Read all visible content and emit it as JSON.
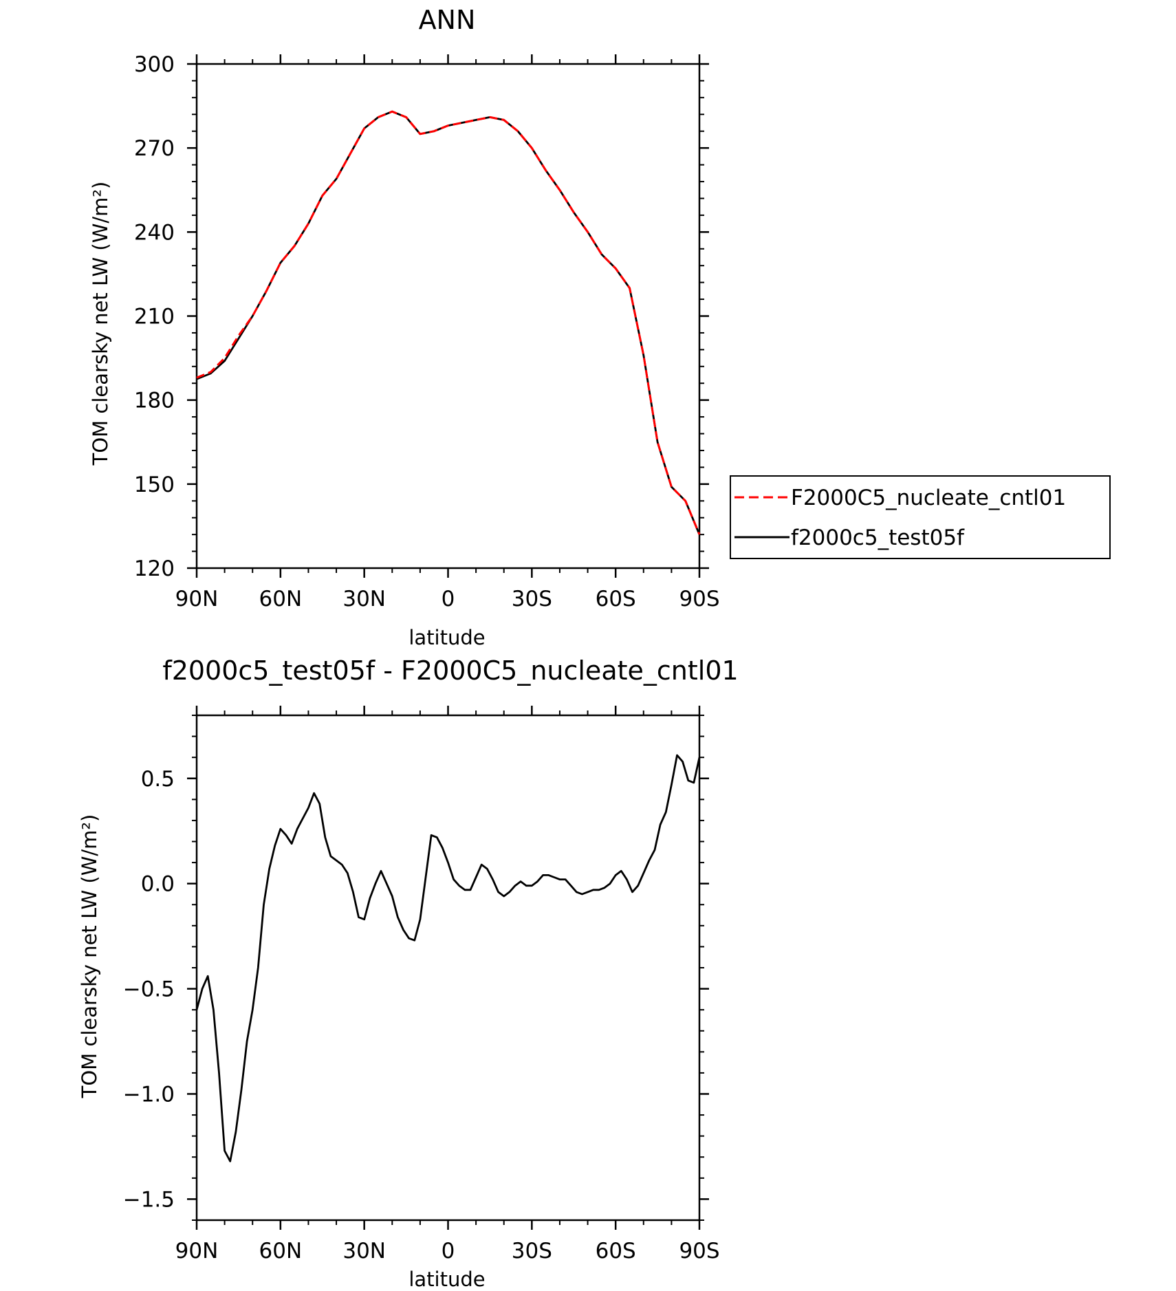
{
  "chart_data": [
    {
      "type": "line",
      "title": "ANN",
      "xlabel": "latitude",
      "ylabel": "TOM clearsky net LW (W/m²)",
      "xlim": [
        90,
        -90
      ],
      "ylim": [
        120,
        300
      ],
      "xticks": [
        90,
        60,
        30,
        0,
        -30,
        -60,
        -90
      ],
      "xtick_labels": [
        "90N",
        "60N",
        "30N",
        "0",
        "30S",
        "60S",
        "90S"
      ],
      "yticks": [
        120,
        150,
        180,
        210,
        240,
        270,
        300
      ],
      "ytick_labels": [
        "120",
        "150",
        "180",
        "210",
        "240",
        "270",
        "300"
      ],
      "legend": "right-outside",
      "series": [
        {
          "name": "F2000C5_nucleate_cntl01",
          "color": "#ff0000",
          "style": "dashed",
          "x": [
            90,
            85,
            80,
            75,
            70,
            65,
            60,
            55,
            50,
            45,
            40,
            35,
            30,
            25,
            20,
            15,
            10,
            5,
            0,
            -5,
            -10,
            -15,
            -20,
            -25,
            -30,
            -35,
            -40,
            -45,
            -50,
            -55,
            -60,
            -65,
            -70,
            -75,
            -80,
            -85,
            -90
          ],
          "values": [
            188,
            190,
            195,
            203,
            210,
            219,
            229,
            235,
            243,
            253,
            259,
            268,
            277,
            281,
            283,
            281,
            275,
            276,
            278,
            279,
            280,
            281,
            280,
            276,
            270,
            262,
            255,
            247,
            240,
            232,
            227,
            220,
            196,
            165,
            149,
            144,
            132
          ]
        },
        {
          "name": "f2000c5_test05f",
          "color": "#000000",
          "style": "solid",
          "x": [
            90,
            85,
            80,
            75,
            70,
            65,
            60,
            55,
            50,
            45,
            40,
            35,
            30,
            25,
            20,
            15,
            10,
            5,
            0,
            -5,
            -10,
            -15,
            -20,
            -25,
            -30,
            -35,
            -40,
            -45,
            -50,
            -55,
            -60,
            -65,
            -70,
            -75,
            -80,
            -85,
            -90
          ],
          "values": [
            187.5,
            189.5,
            194,
            202,
            210,
            219,
            229,
            235,
            243,
            253,
            259,
            268,
            277,
            281,
            283,
            281,
            275,
            276,
            278,
            279,
            280,
            281,
            280,
            276,
            270,
            262,
            255,
            247,
            240,
            232,
            227,
            220,
            196,
            165,
            149,
            144,
            132
          ]
        }
      ]
    },
    {
      "type": "line",
      "title": "f2000c5_test05f - F2000C5_nucleate_cntl01",
      "xlabel": "latitude",
      "ylabel": "TOM clearsky net LW (W/m²)",
      "xlim": [
        90,
        -90
      ],
      "ylim": [
        -1.6,
        0.8
      ],
      "xticks": [
        90,
        60,
        30,
        0,
        -30,
        -60,
        -90
      ],
      "xtick_labels": [
        "90N",
        "60N",
        "30N",
        "0",
        "30S",
        "60S",
        "90S"
      ],
      "yticks": [
        -1.5,
        -1.0,
        -0.5,
        0.0,
        0.5
      ],
      "ytick_labels": [
        "−1.5",
        "−1.0",
        "−0.5",
        "0.0",
        "0.5"
      ],
      "series": [
        {
          "name": "",
          "color": "#000000",
          "style": "solid",
          "x": [
            90,
            88,
            86,
            84,
            82,
            80,
            78,
            76,
            74,
            72,
            70,
            68,
            66,
            64,
            62,
            60,
            58,
            56,
            54,
            52,
            50,
            48,
            46,
            44,
            42,
            40,
            38,
            36,
            34,
            32,
            30,
            28,
            26,
            24,
            22,
            20,
            18,
            16,
            14,
            12,
            10,
            8,
            6,
            4,
            2,
            0,
            -2,
            -4,
            -6,
            -8,
            -10,
            -12,
            -14,
            -16,
            -18,
            -20,
            -22,
            -24,
            -26,
            -28,
            -30,
            -32,
            -34,
            -36,
            -38,
            -40,
            -42,
            -44,
            -46,
            -48,
            -50,
            -52,
            -54,
            -56,
            -58,
            -60,
            -62,
            -64,
            -66,
            -68,
            -70,
            -72,
            -74,
            -76,
            -78,
            -80,
            -82,
            -84,
            -86,
            -88,
            -90
          ],
          "values": [
            -0.6,
            -0.5,
            -0.44,
            -0.6,
            -0.9,
            -1.27,
            -1.32,
            -1.18,
            -0.98,
            -0.75,
            -0.6,
            -0.4,
            -0.1,
            0.07,
            0.18,
            0.26,
            0.23,
            0.19,
            0.26,
            0.31,
            0.36,
            0.43,
            0.38,
            0.22,
            0.13,
            0.11,
            0.09,
            0.05,
            -0.04,
            -0.16,
            -0.17,
            -0.07,
            0.0,
            0.06,
            0.0,
            -0.06,
            -0.16,
            -0.22,
            -0.26,
            -0.27,
            -0.17,
            0.03,
            0.23,
            0.22,
            0.17,
            0.1,
            0.02,
            -0.01,
            -0.03,
            -0.03,
            0.03,
            0.09,
            0.07,
            0.02,
            -0.04,
            -0.06,
            -0.04,
            -0.01,
            0.01,
            -0.01,
            -0.01,
            0.01,
            0.04,
            0.04,
            0.03,
            0.02,
            0.02,
            -0.01,
            -0.04,
            -0.05,
            -0.04,
            -0.03,
            -0.03,
            -0.02,
            0.0,
            0.04,
            0.06,
            0.02,
            -0.04,
            -0.01,
            0.05,
            0.11,
            0.16,
            0.28,
            0.34,
            0.47,
            0.61,
            0.58,
            0.49,
            0.48,
            0.6
          ]
        }
      ]
    }
  ]
}
